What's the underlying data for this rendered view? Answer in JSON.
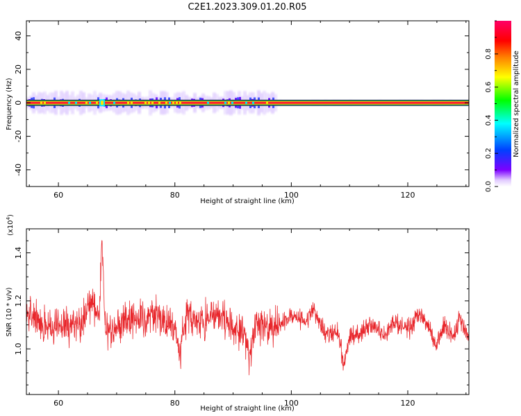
{
  "title": "C2E1.2023.309.01.20.R05",
  "colors": {
    "snr_line": "#e8262b",
    "axes": "#000000",
    "background": "#ffffff"
  },
  "chart_data": [
    {
      "type": "heatmap",
      "title": "",
      "xlabel": "Height of straight line (km)",
      "ylabel": "Frequency (Hz)",
      "xlim": [
        54.5,
        130.5
      ],
      "ylim": [
        -50,
        49
      ],
      "xticks": [
        60,
        80,
        100,
        120
      ],
      "xtick_labels": [
        "60",
        "80",
        "100",
        "120"
      ],
      "yticks": [
        -40,
        -20,
        0,
        20,
        40
      ],
      "ytick_labels": [
        "-40",
        "-20",
        "0",
        "20",
        "40"
      ],
      "grid": false,
      "description": "Doppler spectrogram; energy concentrated in a narrow band near 0 Hz across all heights, with a wider spread of weak power (about ±5 Hz) between ~55 and ~97 km and an enhanced feature near 67.5 km",
      "band": {
        "center_hz": 0,
        "core_halfwidth_hz": 1,
        "spread_hz": 5,
        "spread_height_range_km": [
          54.5,
          97
        ]
      },
      "feature_height_km": 67.5,
      "colorbar": {
        "label": "Normalized spectral amplitude",
        "range": [
          0.0,
          1.0
        ],
        "ticks": [
          0.0,
          0.2,
          0.4,
          0.6,
          0.8
        ],
        "tick_labels": [
          "0.0",
          "0.2",
          "0.4",
          "0.6",
          "0.8"
        ],
        "colormap": [
          "#ffffff",
          "#7d00ff",
          "#0040ff",
          "#00ffff",
          "#00ff00",
          "#ffff00",
          "#ff8000",
          "#ff0000",
          "#ff0066"
        ]
      }
    },
    {
      "type": "line",
      "title": "",
      "xlabel": "Height of straight line (km)",
      "ylabel": "SNR (10 * v/v)",
      "y_multiplier_label": "(x10",
      "y_multiplier_exponent": "4",
      "y_multiplier_close": ")",
      "xlim": [
        54.5,
        130.5
      ],
      "ylim": [
        0.81,
        1.5
      ],
      "xticks": [
        60,
        80,
        100,
        120
      ],
      "xtick_labels": [
        "60",
        "80",
        "100",
        "120"
      ],
      "yticks": [
        1.0,
        1.2,
        1.4
      ],
      "ytick_labels": [
        "1.0",
        "1.2",
        "1.4"
      ],
      "grid": false,
      "series": [
        {
          "color": "#e8262b",
          "x": [
            54.5,
            56,
            58,
            60,
            62,
            64,
            65,
            66,
            67,
            67.5,
            68,
            69,
            70,
            72,
            74,
            76,
            78,
            80,
            80.8,
            82,
            84,
            86,
            88,
            90,
            92,
            92.7,
            94,
            96,
            98,
            100,
            102,
            104,
            106,
            108,
            109,
            110,
            112,
            114,
            116,
            118,
            120,
            122,
            124,
            125,
            126,
            128,
            129,
            130,
            130.5
          ],
          "y": [
            1.15,
            1.13,
            1.08,
            1.12,
            1.09,
            1.1,
            1.18,
            1.19,
            1.12,
            1.45,
            1.1,
            1.07,
            1.09,
            1.13,
            1.11,
            1.15,
            1.12,
            1.08,
            0.97,
            1.14,
            1.11,
            1.13,
            1.15,
            1.08,
            1.06,
            0.95,
            1.12,
            1.07,
            1.1,
            1.15,
            1.11,
            1.16,
            1.06,
            1.08,
            0.93,
            1.05,
            1.07,
            1.1,
            1.06,
            1.11,
            1.08,
            1.14,
            1.08,
            1.0,
            1.1,
            1.05,
            1.13,
            1.07,
            1.04
          ]
        }
      ]
    }
  ]
}
